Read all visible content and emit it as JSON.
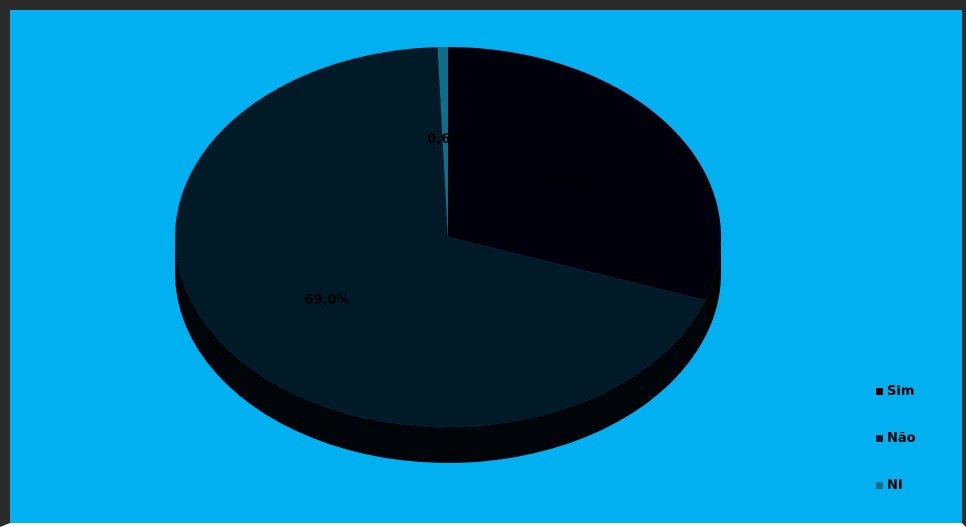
{
  "chart_data": {
    "type": "pie",
    "title": "",
    "style": "3d",
    "categories": [
      "Sim",
      "Não",
      "NI"
    ],
    "values": [
      30.4,
      69.0,
      0.6
    ],
    "labels": [
      "30,4%",
      "69,0%",
      "0,6%"
    ],
    "colors": [
      "#00000d",
      "#001b27",
      "#0f6f8a"
    ],
    "side_colors": [
      "#000000",
      "#00050a",
      "#0a4a5c"
    ],
    "legend_position": "right"
  },
  "legend": {
    "items": [
      {
        "label": "Sim",
        "color": "#000000"
      },
      {
        "label": "Não",
        "color": "#001b27"
      },
      {
        "label": "NI",
        "color": "#0f6f8a"
      }
    ]
  }
}
